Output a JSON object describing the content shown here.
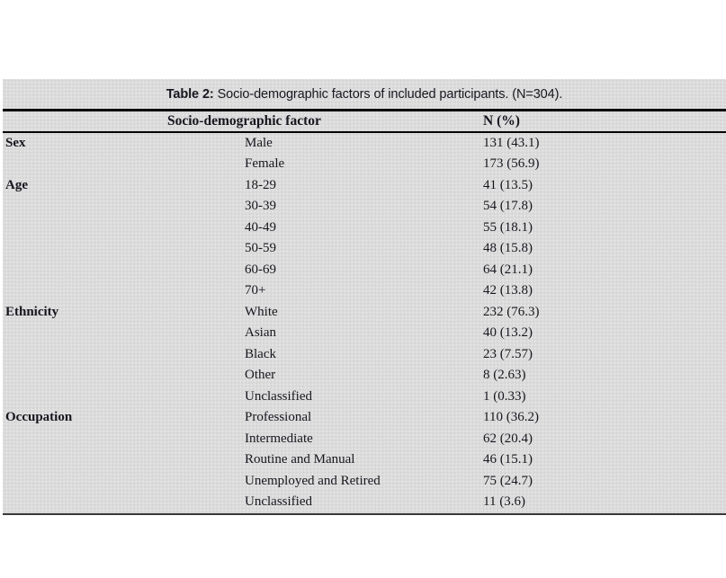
{
  "table": {
    "title": {
      "label": "Table 2:",
      "text": " Socio-demographic factors of included participants. (N=304)."
    },
    "header": {
      "factor": "Socio-demographic factor",
      "n_pct": "N (%)"
    },
    "rows": [
      {
        "category": "Sex",
        "level": "Male",
        "value": "131 (43.1)"
      },
      {
        "category": "",
        "level": "Female",
        "value": "173 (56.9)"
      },
      {
        "category": "Age",
        "level": "18-29",
        "value": "41 (13.5)"
      },
      {
        "category": "",
        "level": "30-39",
        "value": "54 (17.8)"
      },
      {
        "category": "",
        "level": "40-49",
        "value": "55 (18.1)"
      },
      {
        "category": "",
        "level": "50-59",
        "value": "48 (15.8)"
      },
      {
        "category": "",
        "level": "60-69",
        "value": "64 (21.1)"
      },
      {
        "category": "",
        "level": "70+",
        "value": "42 (13.8)"
      },
      {
        "category": "Ethnicity",
        "level": "White",
        "value": "232 (76.3)"
      },
      {
        "category": "",
        "level": "Asian",
        "value": "40 (13.2)"
      },
      {
        "category": "",
        "level": "Black",
        "value": "23 (7.57)"
      },
      {
        "category": "",
        "level": "Other",
        "value": "8 (2.63)"
      },
      {
        "category": "",
        "level": "Unclassified",
        "value": "1 (0.33)"
      },
      {
        "category": "Occupation",
        "level": "Professional",
        "value": "110 (36.2)"
      },
      {
        "category": "",
        "level": "Intermediate",
        "value": "62 (20.4)"
      },
      {
        "category": "",
        "level": "Routine and Manual",
        "value": "46 (15.1)"
      },
      {
        "category": "",
        "level": "Unemployed and Retired",
        "value": "75 (24.7)"
      },
      {
        "category": "",
        "level": "Unclassified",
        "value": "11 (3.6)"
      }
    ],
    "colors": {
      "text": "#16161e",
      "rule": "#000000",
      "bottom_rule": "#3a3a3a",
      "table_background": "#dbdbdb",
      "page_background": "#ffffff"
    }
  }
}
